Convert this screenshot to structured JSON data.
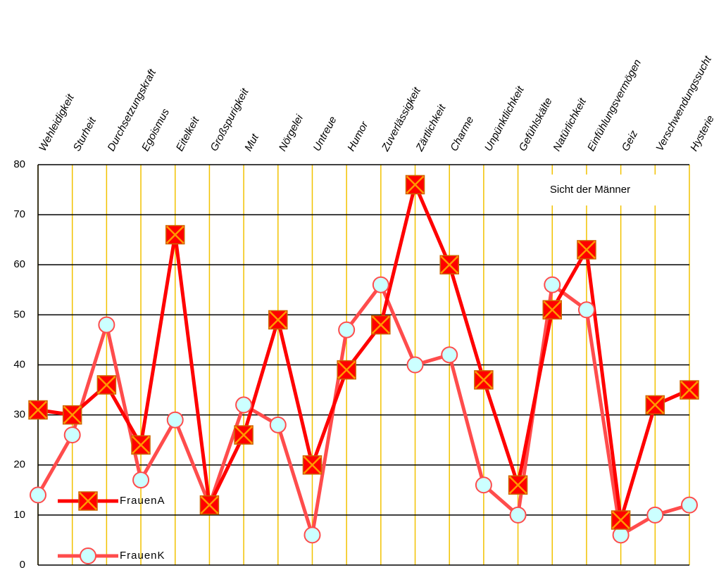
{
  "chart_data": {
    "type": "line",
    "annotation": "Sicht der Männer",
    "categories": [
      "Wehleidigkeit",
      "Sturheit",
      "Durchsetzungskraft",
      "Egoismus",
      "Eitelkeit",
      "Großspurigkeit",
      "Mut",
      "Nörgelei",
      "Untreue",
      "Humor",
      "Zuverlässigkeit",
      "Zärtlichkeit",
      "Charme",
      "Unpünktlichkeit",
      "Gefühlskälte",
      "Natürlichkeit",
      "Einfühlungsvermögen",
      "Geiz",
      "Verschwendungssucht",
      "Hysterie"
    ],
    "series": [
      {
        "name": "FrauenA",
        "color": "#ff0000",
        "marker": "square-x",
        "values": [
          31,
          30,
          36,
          24,
          66,
          12,
          26,
          49,
          20,
          39,
          48,
          76,
          60,
          37,
          16,
          51,
          63,
          9,
          32,
          35
        ]
      },
      {
        "name": "FrauenK",
        "color": "#ff4c4c",
        "marker": "circle",
        "values": [
          14,
          26,
          48,
          17,
          29,
          12,
          32,
          28,
          6,
          47,
          56,
          40,
          42,
          16,
          10,
          56,
          51,
          6,
          10,
          12
        ]
      }
    ],
    "ylim": [
      0,
      80
    ],
    "yticks": [
      0,
      10,
      20,
      30,
      40,
      50,
      60,
      70,
      80
    ],
    "grid": true,
    "legend": "lower left"
  }
}
